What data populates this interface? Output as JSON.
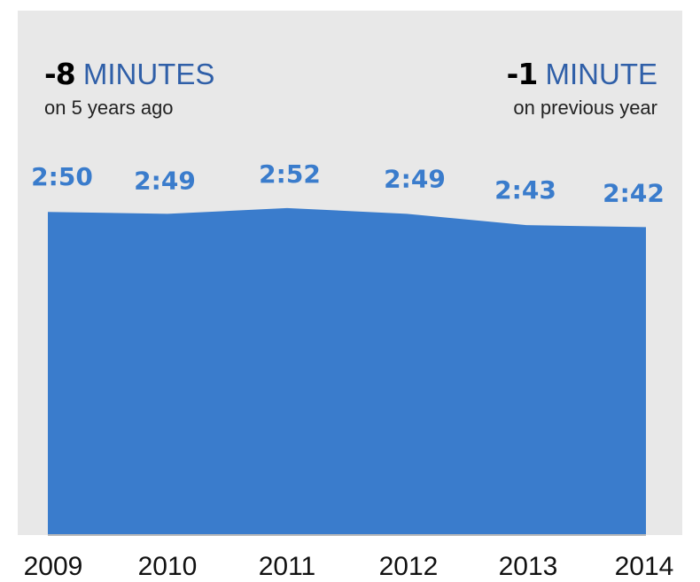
{
  "colors": {
    "accent": "#3a7ccc",
    "unit_text": "#2f5fa8",
    "panel_bg": "#e8e8e8",
    "baseline": "#b9b9b9"
  },
  "stats": {
    "left": {
      "value": "-8",
      "unit": "MINUTES",
      "caption": "on 5 years ago"
    },
    "right": {
      "value": "-1",
      "unit": "MINUTE",
      "caption": "on previous year"
    }
  },
  "chart_data": {
    "type": "area",
    "categories": [
      "2009",
      "2010",
      "2011",
      "2012",
      "2013",
      "2014"
    ],
    "values_minutes": [
      170,
      169,
      172,
      169,
      163,
      162
    ],
    "data_labels": [
      "2:50",
      "2:49",
      "2:52",
      "2:49",
      "2:43",
      "2:42"
    ],
    "ylim": [
      0,
      180
    ],
    "grid": false,
    "legend": "none"
  }
}
